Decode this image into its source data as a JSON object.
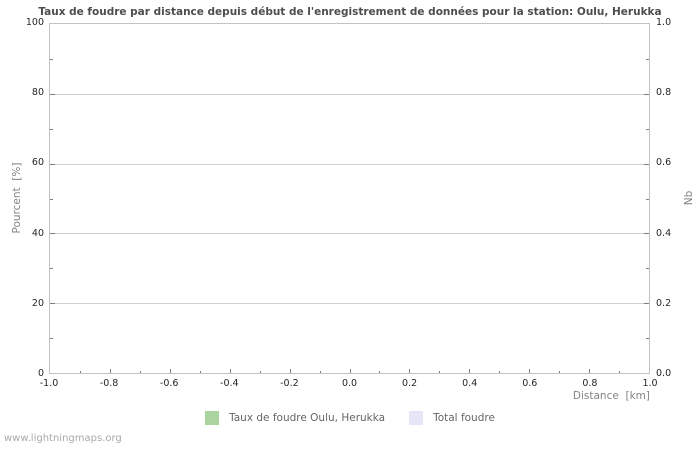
{
  "title": "Taux de foudre par distance depuis début de l'enregistrement de données pour la station: Oulu, Herukka",
  "axes": {
    "left": {
      "title": "Pourcent  [%]",
      "tick_labels": [
        "0",
        "20",
        "40",
        "60",
        "80",
        "100"
      ]
    },
    "right": {
      "title": "Nb",
      "tick_labels": [
        "0.0",
        "0.2",
        "0.4",
        "0.6",
        "0.8",
        "1.0"
      ]
    },
    "bottom": {
      "title": "Distance  [km]",
      "tick_labels": [
        "-1.0",
        "-0.8",
        "-0.6",
        "-0.4",
        "-0.2",
        "0.0",
        "0.2",
        "0.4",
        "0.6",
        "0.8",
        "1.0"
      ]
    }
  },
  "legend": {
    "items": [
      {
        "label": "Taux de foudre Oulu, Herukka",
        "color": "#aad5a0"
      },
      {
        "label": "Total foudre",
        "color": "#e6e6f8"
      }
    ]
  },
  "footer": "www.lightningmaps.org",
  "colors": {
    "background": "#ffffff",
    "plot_border": "#c2c2c2",
    "gridline": "#cfcfcf",
    "tick_mark": "#7f7f7f",
    "tick_text": "#262626",
    "title_text": "#4d4d4d",
    "axis_title_text": "#848484",
    "legend_text": "#666666",
    "footer_text": "#a8a8a8",
    "series_rate": "#aad5a0",
    "series_total": "#e6e6f8"
  },
  "chart_data": {
    "type": "bar",
    "title": "Taux de foudre par distance depuis début de l'enregistrement de données pour la station: Oulu, Herukka",
    "xlabel": "Distance [km]",
    "ylabel": "Pourcent [%]",
    "ylabel_right": "Nb",
    "xlim": [
      -1.0,
      1.0
    ],
    "ylim": [
      0,
      100
    ],
    "ylim_right": [
      0.0,
      1.0
    ],
    "x_ticks": [
      -1.0,
      -0.8,
      -0.6,
      -0.4,
      -0.2,
      0.0,
      0.2,
      0.4,
      0.6,
      0.8,
      1.0
    ],
    "y_ticks_left": [
      0,
      20,
      40,
      60,
      80,
      100
    ],
    "y_ticks_right": [
      0.0,
      0.2,
      0.4,
      0.6,
      0.8,
      1.0
    ],
    "grid": "horizontal-major-only",
    "legend_position": "bottom-center",
    "series": [
      {
        "name": "Taux de foudre Oulu, Herukka",
        "axis": "left",
        "color": "#aad5a0",
        "x": [],
        "values": []
      },
      {
        "name": "Total foudre",
        "axis": "right",
        "color": "#e6e6f8",
        "x": [],
        "values": []
      }
    ],
    "note_empty": "plot area contains no data points"
  }
}
